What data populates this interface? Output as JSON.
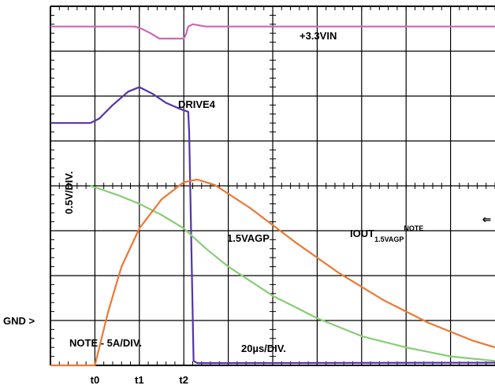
{
  "chart_data": {
    "type": "line",
    "title": "",
    "grid": true,
    "divisions": {
      "x": 10,
      "y": 8
    },
    "x_ticks": [
      "t0",
      "t1",
      "t2"
    ],
    "x_tick_positions_div": [
      1.0,
      2.0,
      3.0
    ],
    "left_markers": {
      "gnd": "GND >"
    },
    "annotations": {
      "vin": "+3.3VIN",
      "drive": "DRIVE4",
      "vagp": "1.5VAGP",
      "iout_main": "IOUT",
      "iout_sub": "1.5VAGP",
      "iout_sup": "NOTE",
      "vscale": "0.5V/DIV.",
      "note": "NOTE - 5A/DIV.",
      "tscale": "20µs/DIV.",
      "arrow": "⇐"
    },
    "x_unit": "div (20µs/DIV.)",
    "y_unit": "div",
    "series": [
      {
        "name": "+3.3VIN",
        "color": "#cc66b8",
        "points": [
          [
            0,
            7.55
          ],
          [
            1.9,
            7.55
          ],
          [
            2.05,
            7.5
          ],
          [
            2.25,
            7.4
          ],
          [
            2.45,
            7.28
          ],
          [
            2.75,
            7.28
          ],
          [
            3.0,
            7.28
          ],
          [
            3.05,
            7.38
          ],
          [
            3.1,
            7.55
          ],
          [
            3.2,
            7.6
          ],
          [
            3.5,
            7.55
          ],
          [
            10,
            7.55
          ]
        ]
      },
      {
        "name": "DRIVE4",
        "color": "#5533aa",
        "points": [
          [
            0,
            5.4
          ],
          [
            0.9,
            5.4
          ],
          [
            1.1,
            5.5
          ],
          [
            1.4,
            5.8
          ],
          [
            1.75,
            6.1
          ],
          [
            2.0,
            6.2
          ],
          [
            2.3,
            6.05
          ],
          [
            2.6,
            5.85
          ],
          [
            2.95,
            5.7
          ],
          [
            3.1,
            5.65
          ],
          [
            3.12,
            5.2
          ],
          [
            3.22,
            0.1
          ],
          [
            3.3,
            0.05
          ],
          [
            10,
            0.06
          ]
        ]
      },
      {
        "name": "1.5VAGP",
        "color": "#88cc77",
        "points": [
          [
            0.9,
            4.0
          ],
          [
            1.5,
            3.8
          ],
          [
            2.0,
            3.6
          ],
          [
            2.5,
            3.35
          ],
          [
            3.0,
            3.05
          ],
          [
            3.5,
            2.6
          ],
          [
            4.0,
            2.2
          ],
          [
            5.0,
            1.55
          ],
          [
            6.0,
            1.05
          ],
          [
            7.0,
            0.65
          ],
          [
            8.0,
            0.4
          ],
          [
            9.0,
            0.2
          ],
          [
            10,
            0.1
          ]
        ]
      },
      {
        "name": "IOUT 1.5VAGP",
        "color": "#ee7733",
        "points": [
          [
            0,
            0.0
          ],
          [
            1.0,
            0.0
          ],
          [
            1.1,
            0.4
          ],
          [
            1.3,
            1.2
          ],
          [
            1.6,
            2.2
          ],
          [
            2.0,
            3.05
          ],
          [
            2.5,
            3.7
          ],
          [
            3.0,
            4.08
          ],
          [
            3.3,
            4.14
          ],
          [
            3.7,
            4.02
          ],
          [
            4.5,
            3.5
          ],
          [
            5.5,
            2.75
          ],
          [
            6.5,
            2.05
          ],
          [
            7.5,
            1.45
          ],
          [
            8.5,
            0.95
          ],
          [
            9.5,
            0.55
          ],
          [
            10,
            0.4
          ]
        ]
      }
    ]
  }
}
